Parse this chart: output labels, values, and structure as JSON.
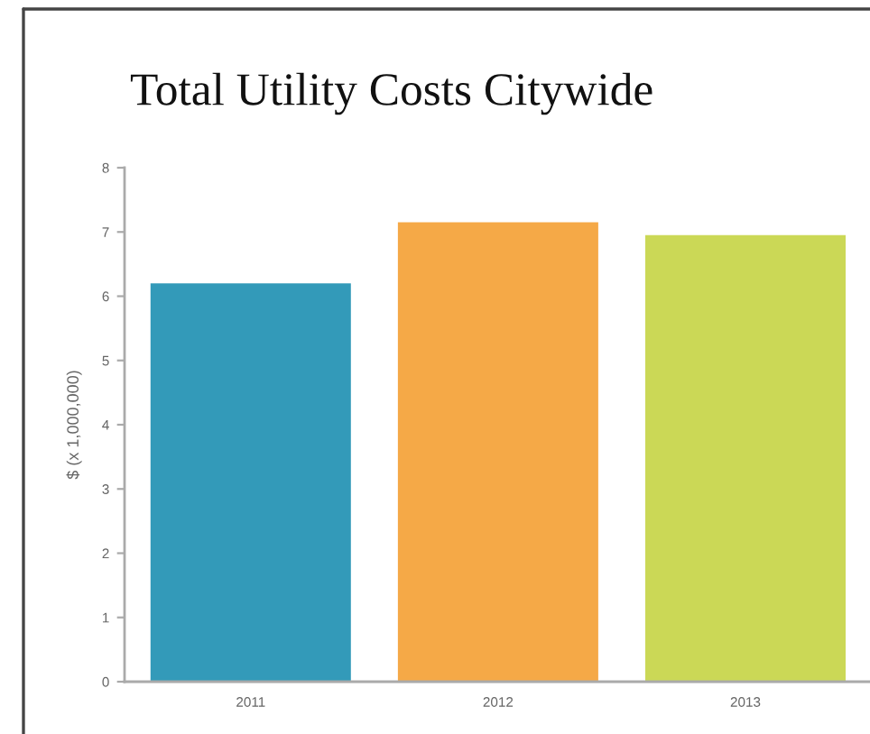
{
  "chart_data": {
    "type": "bar",
    "title": "Total Utility Costs Citywide",
    "ylabel": "$ (x 1,000,000)",
    "categories": [
      "2011",
      "2012",
      "2013"
    ],
    "values": [
      6.2,
      7.15,
      6.95
    ],
    "colors": [
      "#339ab9",
      "#f5a947",
      "#cbd856"
    ],
    "ylim": [
      0,
      8
    ],
    "yticks": [
      0,
      1,
      2,
      3,
      4,
      5,
      6,
      7,
      8
    ]
  }
}
